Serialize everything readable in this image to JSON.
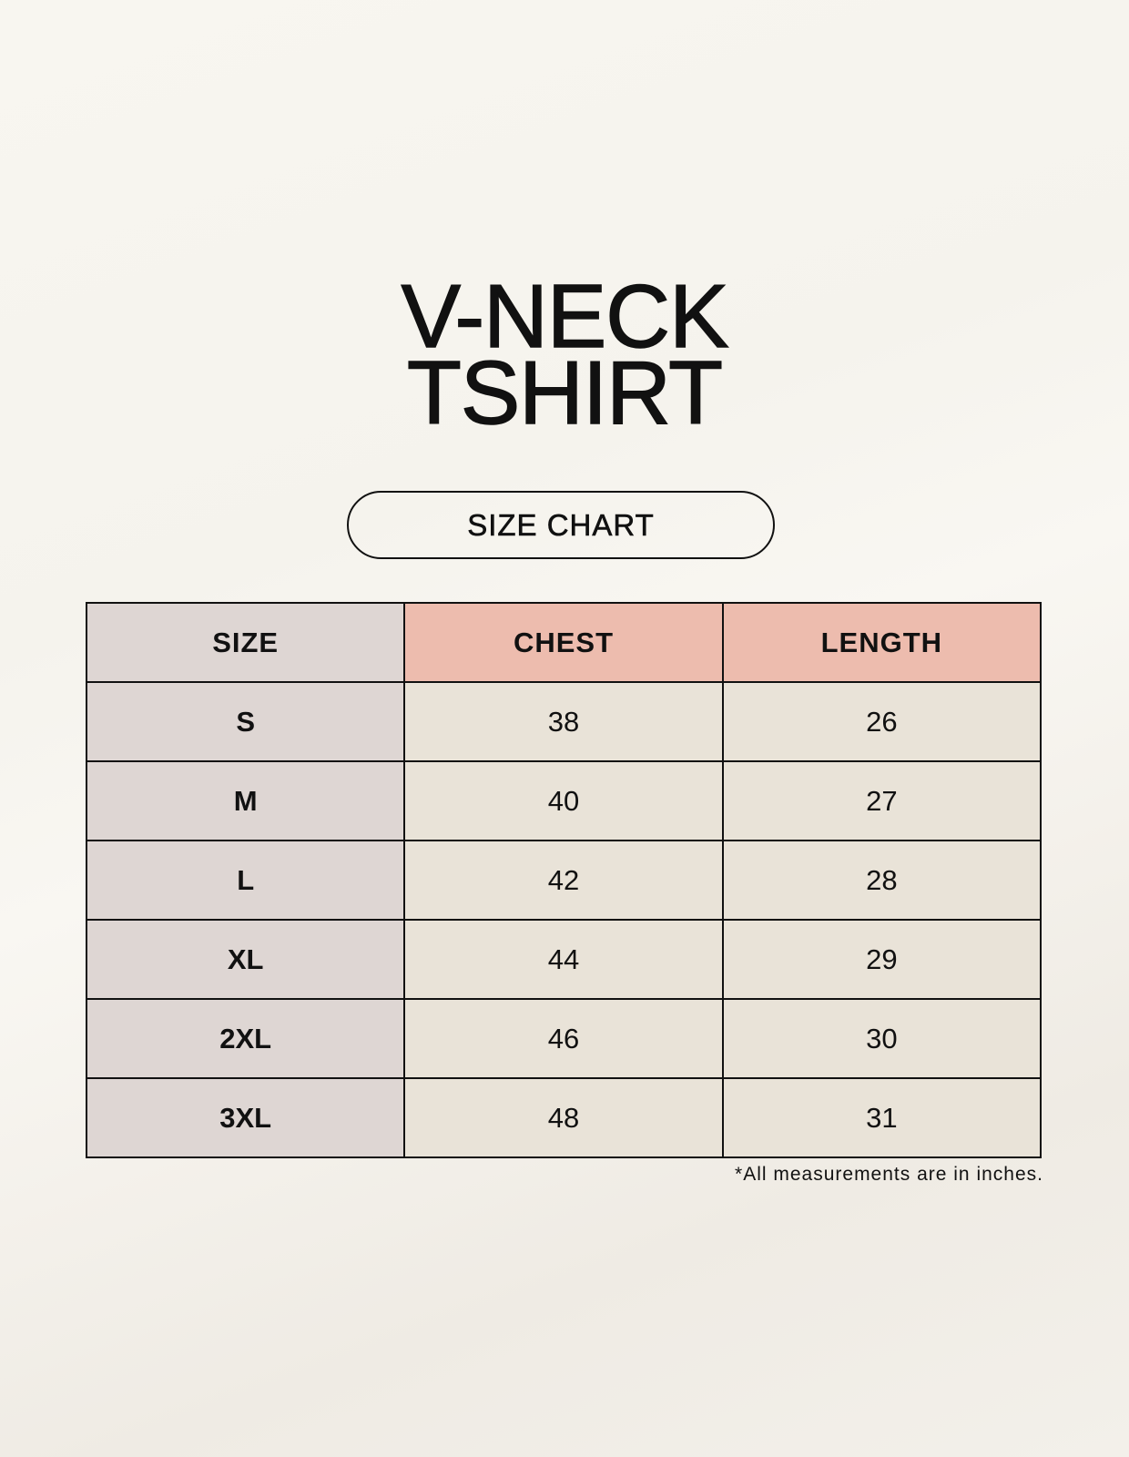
{
  "title": {
    "line1": "V-NECK",
    "line2": "TSHIRT"
  },
  "badge": "SIZE CHART",
  "table": {
    "headers": [
      "SIZE",
      "CHEST",
      "LENGTH"
    ],
    "rows": [
      {
        "size": "S",
        "chest": "38",
        "length": "26"
      },
      {
        "size": "M",
        "chest": "40",
        "length": "27"
      },
      {
        "size": "L",
        "chest": "42",
        "length": "28"
      },
      {
        "size": "XL",
        "chest": "44",
        "length": "29"
      },
      {
        "size": "2XL",
        "chest": "46",
        "length": "30"
      },
      {
        "size": "3XL",
        "chest": "48",
        "length": "31"
      }
    ]
  },
  "note": "*All measurements are in inches.",
  "colors": {
    "size_column": "#ded6d3",
    "header_accent": "#edbcae",
    "value_cells": "#e9e3d8"
  }
}
